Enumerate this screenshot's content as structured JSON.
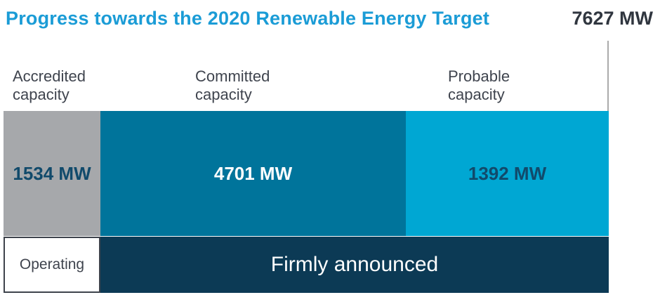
{
  "colors": {
    "title-blue": "#1B9CD6",
    "dark-text": "#30363F",
    "label-text": "#3F444E",
    "value-navy": "#114A6B",
    "gray-segment": "#A6A8AB",
    "teal-segment": "#00749B",
    "lightblue-segment": "#00A7D3",
    "navy-band": "#0C3A55",
    "target-line": "#ABABAB",
    "operating-border": "#3E434C"
  },
  "chart_data": {
    "type": "bar",
    "subtype": "horizontal-stacked-progress",
    "title": "Progress towards the 2020 Renewable Energy Target",
    "unit": "MW",
    "target": {
      "value_mw": 7627,
      "label": "7627 MW"
    },
    "segments": [
      {
        "category": "Accredited capacity",
        "category_label": "Accredited\ncapacity",
        "value_mw": 1534,
        "value_label": "1534 MW",
        "color": "#A6A8AB",
        "status_band": "Operating"
      },
      {
        "category": "Committed capacity",
        "category_label": "Committed\ncapacity",
        "value_mw": 4701,
        "value_label": "4701 MW",
        "color": "#00749B",
        "status_band": "Firmly announced"
      },
      {
        "category": "Probable capacity",
        "category_label": "Probable\ncapacity",
        "value_mw": 1392,
        "value_label": "1392 MW",
        "color": "#00A7D3",
        "status_band": "Firmly announced"
      }
    ],
    "status_bands": [
      {
        "label": "Operating",
        "color": "#FFFFFF"
      },
      {
        "label": "Firmly announced",
        "color": "#0C3A55"
      }
    ],
    "legend_position": "none",
    "grid": false
  }
}
